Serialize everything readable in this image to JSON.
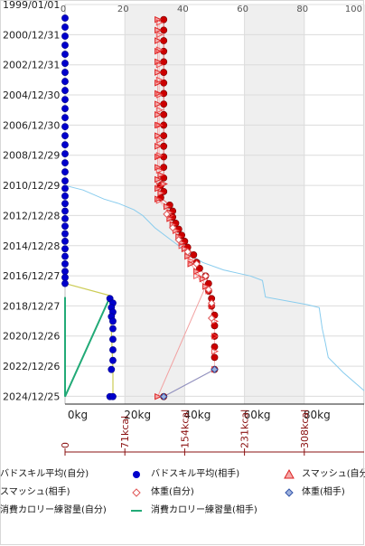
{
  "chart_data": {
    "type": "line",
    "orientation": "horizontal",
    "y_dates": [
      "1999/01/01",
      "2000/12/31",
      "2002/12/31",
      "2004/12/30",
      "2006/12/30",
      "2008/12/29",
      "2010/12/29",
      "2012/12/28",
      "2014/12/28",
      "2016/12/27",
      "2018/12/27",
      "2020/12/26",
      "2022/12/26",
      "2024/12/25"
    ],
    "y_range": [
      "1999/01/01",
      "2025/06/30"
    ],
    "x_top_ticks": [
      "0",
      "20",
      "40",
      "60",
      "80",
      "100"
    ],
    "x_bottom_ticks": [
      "0kg",
      "20kg",
      "40kg",
      "60kg",
      "80kg"
    ],
    "x_range": [
      0,
      100
    ],
    "calorie_ticks": [
      "0",
      "71kcal",
      "154kcal",
      "231kcal",
      "308kcal"
    ],
    "shaded_bands": [
      [
        20,
        40
      ],
      [
        60,
        80
      ]
    ],
    "grid": true,
    "colors": {
      "self_skill": "#0000cc",
      "opp_skill": "#cc0000",
      "smash": "#dd2222",
      "weight_self": "#e05555",
      "weight_opp": "#3355aa",
      "calorie_self": "#cccc55",
      "calorie_opp": "#22aa77",
      "extra_line": "#88ccee",
      "band": "#efefef",
      "cal_axis": "#8a1010"
    },
    "series": [
      {
        "name": "バドスキル平均(自分)",
        "marker": "circle-blue",
        "points": [
          [
            1999.9,
            0
          ],
          [
            2000.5,
            0
          ],
          [
            2001.1,
            0
          ],
          [
            2001.7,
            0
          ],
          [
            2002.3,
            0
          ],
          [
            2002.9,
            0
          ],
          [
            2003.5,
            0
          ],
          [
            2004.1,
            0
          ],
          [
            2004.7,
            0
          ],
          [
            2005.3,
            0
          ],
          [
            2005.9,
            0
          ],
          [
            2006.5,
            0
          ],
          [
            2007.1,
            0
          ],
          [
            2007.7,
            0
          ],
          [
            2008.3,
            0
          ],
          [
            2008.9,
            0
          ],
          [
            2009.5,
            0
          ],
          [
            2010.1,
            0
          ],
          [
            2010.7,
            0
          ],
          [
            2011.2,
            0
          ],
          [
            2011.7,
            0
          ],
          [
            2012.2,
            0
          ],
          [
            2012.7,
            0
          ],
          [
            2013.2,
            0
          ],
          [
            2013.7,
            0
          ],
          [
            2014.2,
            0
          ],
          [
            2014.7,
            0
          ],
          [
            2015.2,
            0
          ],
          [
            2015.7,
            0
          ],
          [
            2016.2,
            0
          ],
          [
            2016.7,
            0
          ],
          [
            2017.1,
            0
          ],
          [
            2017.5,
            0
          ],
          [
            2018.5,
            15
          ],
          [
            2018.8,
            16
          ],
          [
            2019.1,
            15.5
          ],
          [
            2019.4,
            16
          ],
          [
            2019.7,
            15.5
          ],
          [
            2020.0,
            16
          ],
          [
            2020.5,
            16
          ],
          [
            2021.2,
            16
          ],
          [
            2021.9,
            16
          ],
          [
            2022.6,
            16
          ],
          [
            2023.2,
            15.5
          ],
          [
            2025.0,
            15
          ],
          [
            2025.0,
            16
          ]
        ]
      },
      {
        "name": "バドスキル平均(相手)",
        "marker": "circle-red",
        "points": [
          [
            2000.0,
            33
          ],
          [
            2000.7,
            33
          ],
          [
            2001.4,
            33
          ],
          [
            2002.1,
            33
          ],
          [
            2002.8,
            33
          ],
          [
            2003.5,
            33
          ],
          [
            2004.2,
            33
          ],
          [
            2004.9,
            33
          ],
          [
            2005.6,
            33
          ],
          [
            2006.3,
            33
          ],
          [
            2007.0,
            33
          ],
          [
            2007.7,
            33
          ],
          [
            2008.4,
            33
          ],
          [
            2009.1,
            33
          ],
          [
            2009.8,
            33
          ],
          [
            2010.5,
            33
          ],
          [
            2011.0,
            32
          ],
          [
            2011.4,
            33
          ],
          [
            2011.8,
            32
          ],
          [
            2012.3,
            35
          ],
          [
            2012.7,
            36
          ],
          [
            2013.1,
            36
          ],
          [
            2013.5,
            37
          ],
          [
            2013.9,
            38
          ],
          [
            2014.3,
            39
          ],
          [
            2014.7,
            40
          ],
          [
            2015.1,
            41
          ],
          [
            2015.6,
            43
          ],
          [
            2016.1,
            44
          ],
          [
            2016.5,
            45
          ],
          [
            2017.0,
            47
          ],
          [
            2017.5,
            48
          ],
          [
            2018.0,
            48
          ],
          [
            2018.5,
            49
          ],
          [
            2019.0,
            49
          ],
          [
            2019.6,
            50
          ],
          [
            2020.3,
            50
          ],
          [
            2021.0,
            50
          ],
          [
            2021.7,
            50
          ],
          [
            2022.4,
            50
          ],
          [
            2023.2,
            50
          ],
          [
            2025.0,
            33
          ]
        ]
      },
      {
        "name": "スマッシュ(自分)",
        "marker": "triangle-red",
        "points": [
          [
            2000.0,
            31
          ],
          [
            2000.7,
            31
          ],
          [
            2001.4,
            31
          ],
          [
            2002.1,
            31
          ],
          [
            2002.8,
            31
          ],
          [
            2003.5,
            31
          ],
          [
            2004.2,
            31
          ],
          [
            2004.9,
            31
          ],
          [
            2005.6,
            31
          ],
          [
            2006.3,
            31
          ],
          [
            2007.0,
            31
          ],
          [
            2007.7,
            31
          ],
          [
            2008.4,
            31
          ],
          [
            2009.1,
            31
          ],
          [
            2009.8,
            31
          ],
          [
            2010.3,
            32
          ],
          [
            2010.6,
            31
          ],
          [
            2010.9,
            33
          ],
          [
            2011.2,
            31
          ],
          [
            2011.5,
            32
          ],
          [
            2011.9,
            31
          ],
          [
            2012.4,
            34
          ],
          [
            2012.8,
            35
          ],
          [
            2013.2,
            35
          ],
          [
            2013.6,
            36
          ],
          [
            2014.0,
            37
          ],
          [
            2014.4,
            38
          ],
          [
            2014.8,
            39
          ],
          [
            2015.2,
            40
          ],
          [
            2015.7,
            41
          ],
          [
            2016.2,
            42
          ],
          [
            2016.7,
            44
          ],
          [
            2017.2,
            46
          ],
          [
            2017.7,
            47
          ],
          [
            2025.0,
            31
          ]
        ]
      },
      {
        "name": "スマッシュ(相手)",
        "marker": "triangle-open",
        "points": [
          [
            2000.2,
            31.5
          ],
          [
            2001.0,
            31.5
          ],
          [
            2002.0,
            31.5
          ],
          [
            2003.0,
            31.5
          ],
          [
            2004.0,
            31.5
          ],
          [
            2005.0,
            31.5
          ],
          [
            2006.0,
            31.5
          ],
          [
            2007.0,
            31.5
          ],
          [
            2008.0,
            31.5
          ],
          [
            2009.0,
            31.5
          ],
          [
            2010.0,
            31.5
          ],
          [
            2011.0,
            31.5
          ],
          [
            2012.0,
            31.5
          ],
          [
            2013.0,
            35
          ],
          [
            2014.0,
            37
          ],
          [
            2015.0,
            39
          ],
          [
            2016.0,
            42
          ],
          [
            2017.0,
            44
          ],
          [
            2018.0,
            48
          ],
          [
            2019.0,
            49
          ],
          [
            2020.0,
            50
          ],
          [
            2021.0,
            50
          ],
          [
            2022.0,
            50
          ],
          [
            2023.2,
            50
          ]
        ]
      },
      {
        "name": "体重(自分)",
        "marker": "diamond-open-red",
        "points": [
          [
            2012.9,
            34
          ],
          [
            2013.8,
            36
          ],
          [
            2014.6,
            38
          ],
          [
            2015.4,
            41
          ],
          [
            2016.2,
            44
          ],
          [
            2017.0,
            47
          ],
          [
            2017.9,
            48
          ],
          [
            2018.8,
            49
          ],
          [
            2019.8,
            49
          ]
        ]
      },
      {
        "name": "体重(相手)",
        "marker": "diamond-blue",
        "points": [
          [
            2023.2,
            50
          ],
          [
            2025.0,
            33
          ]
        ]
      },
      {
        "name": "消費カロリー練習量(自分)",
        "marker": "line-yellow",
        "points": [
          [
            2017.5,
            0
          ],
          [
            2018.3,
            15
          ],
          [
            2023.2,
            16
          ],
          [
            2025.0,
            16
          ]
        ]
      },
      {
        "name": "消費カロリー練習量(相手)",
        "marker": "line-green",
        "points": [
          [
            2018.4,
            0
          ],
          [
            2025.0,
            0
          ],
          [
            2018.4,
            15
          ]
        ]
      },
      {
        "name": "",
        "marker": "line-lightblue",
        "points": [
          [
            2011.0,
            0
          ],
          [
            2011.3,
            6
          ],
          [
            2011.9,
            13
          ],
          [
            2012.2,
            18
          ],
          [
            2012.6,
            23
          ],
          [
            2013.0,
            26
          ],
          [
            2013.8,
            30
          ],
          [
            2014.4,
            34
          ],
          [
            2015.0,
            38
          ],
          [
            2015.6,
            42
          ],
          [
            2016.1,
            46
          ],
          [
            2016.6,
            53
          ],
          [
            2017.0,
            62
          ],
          [
            2017.3,
            66
          ],
          [
            2018.4,
            67
          ],
          [
            2018.9,
            81
          ],
          [
            2019.1,
            85
          ],
          [
            2020.5,
            86
          ],
          [
            2021.4,
            87
          ],
          [
            2022.4,
            88
          ],
          [
            2023.4,
            93
          ],
          [
            2024.6,
            100
          ]
        ]
      }
    ]
  },
  "legend": {
    "items": [
      {
        "label": "バドスキル平均(自分)",
        "symbol": "circle-blue"
      },
      {
        "label": "バドスキル平均(相手)",
        "symbol": "triangle-red"
      },
      {
        "label": "スマッシュ(自分)",
        "symbol": ""
      },
      {
        "label": "スマッシュ(相手)",
        "symbol": "diamond-open-red"
      },
      {
        "label": "体重(自分)",
        "symbol": "diamond-blue"
      },
      {
        "label": "体重(相手)",
        "symbol": ""
      },
      {
        "label": "消費カロリー練習量(自分)",
        "symbol": "line-green"
      },
      {
        "label": "消費カロリー練習量(相手)",
        "symbol": ""
      }
    ]
  }
}
